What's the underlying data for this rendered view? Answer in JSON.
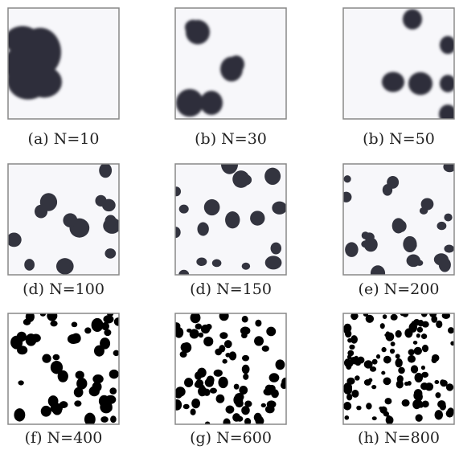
{
  "panels": [
    {
      "caption": "(a) N=10"
    },
    {
      "caption": "(b) N=30"
    },
    {
      "caption": "(b) N=50"
    },
    {
      "caption": "(d) N=100"
    },
    {
      "caption": "(d) N=150"
    },
    {
      "caption": "(e) N=200"
    },
    {
      "caption": "(f) N=400"
    },
    {
      "caption": "(g) N=600"
    },
    {
      "caption": "(h) N=800"
    }
  ]
}
